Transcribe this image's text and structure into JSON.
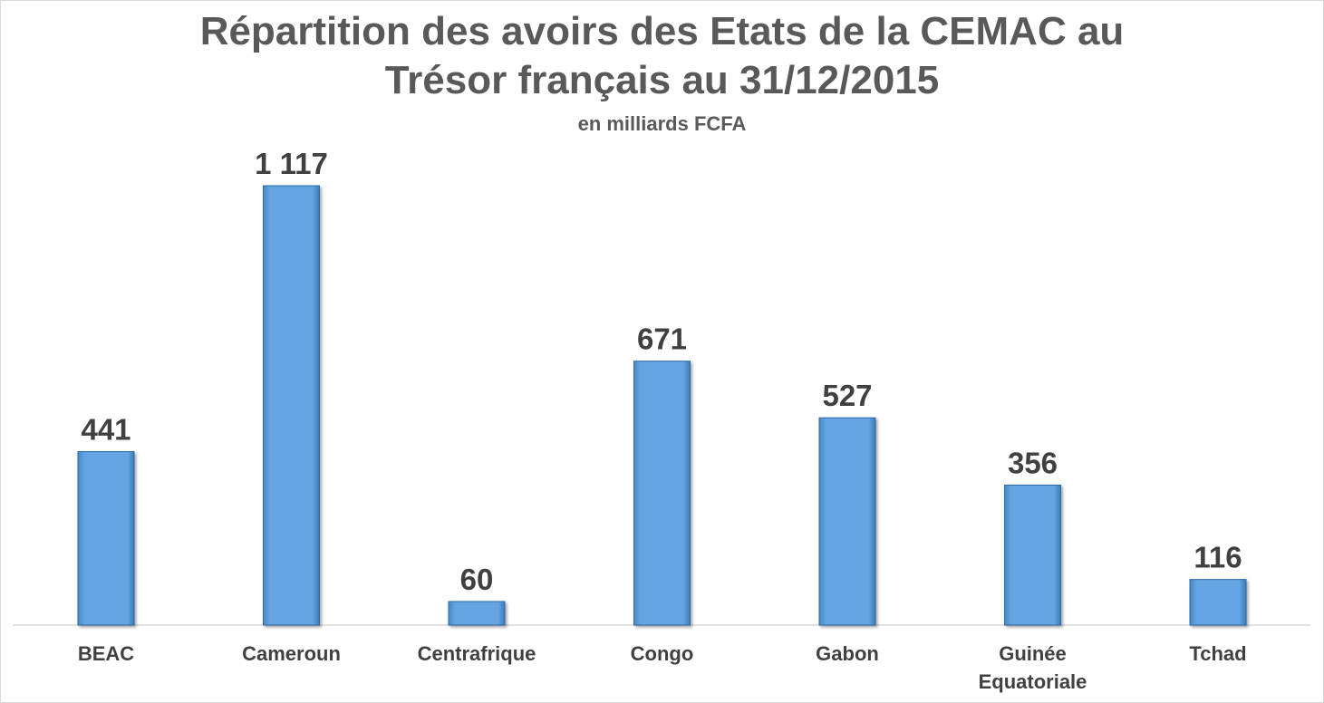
{
  "chart_data": {
    "type": "bar",
    "title_line1": "Répartition des avoirs des Etats de la CEMAC au",
    "title_line2": "Trésor français au 31/12/2015",
    "subtitle": "en milliards FCFA",
    "categories": [
      [
        "BEAC"
      ],
      [
        "Cameroun"
      ],
      [
        "Centrafrique"
      ],
      [
        "Congo"
      ],
      [
        "Gabon"
      ],
      [
        "Guinée",
        "Equatoriale"
      ],
      [
        "Tchad"
      ]
    ],
    "values": [
      441,
      1117,
      60,
      671,
      527,
      356,
      116
    ],
    "value_labels": [
      "441",
      "1 117",
      "60",
      "671",
      "527",
      "356",
      "116"
    ],
    "ylim": [
      0,
      1117
    ],
    "grid": false,
    "legend": "none",
    "bar_color": "#5b9bd5"
  }
}
